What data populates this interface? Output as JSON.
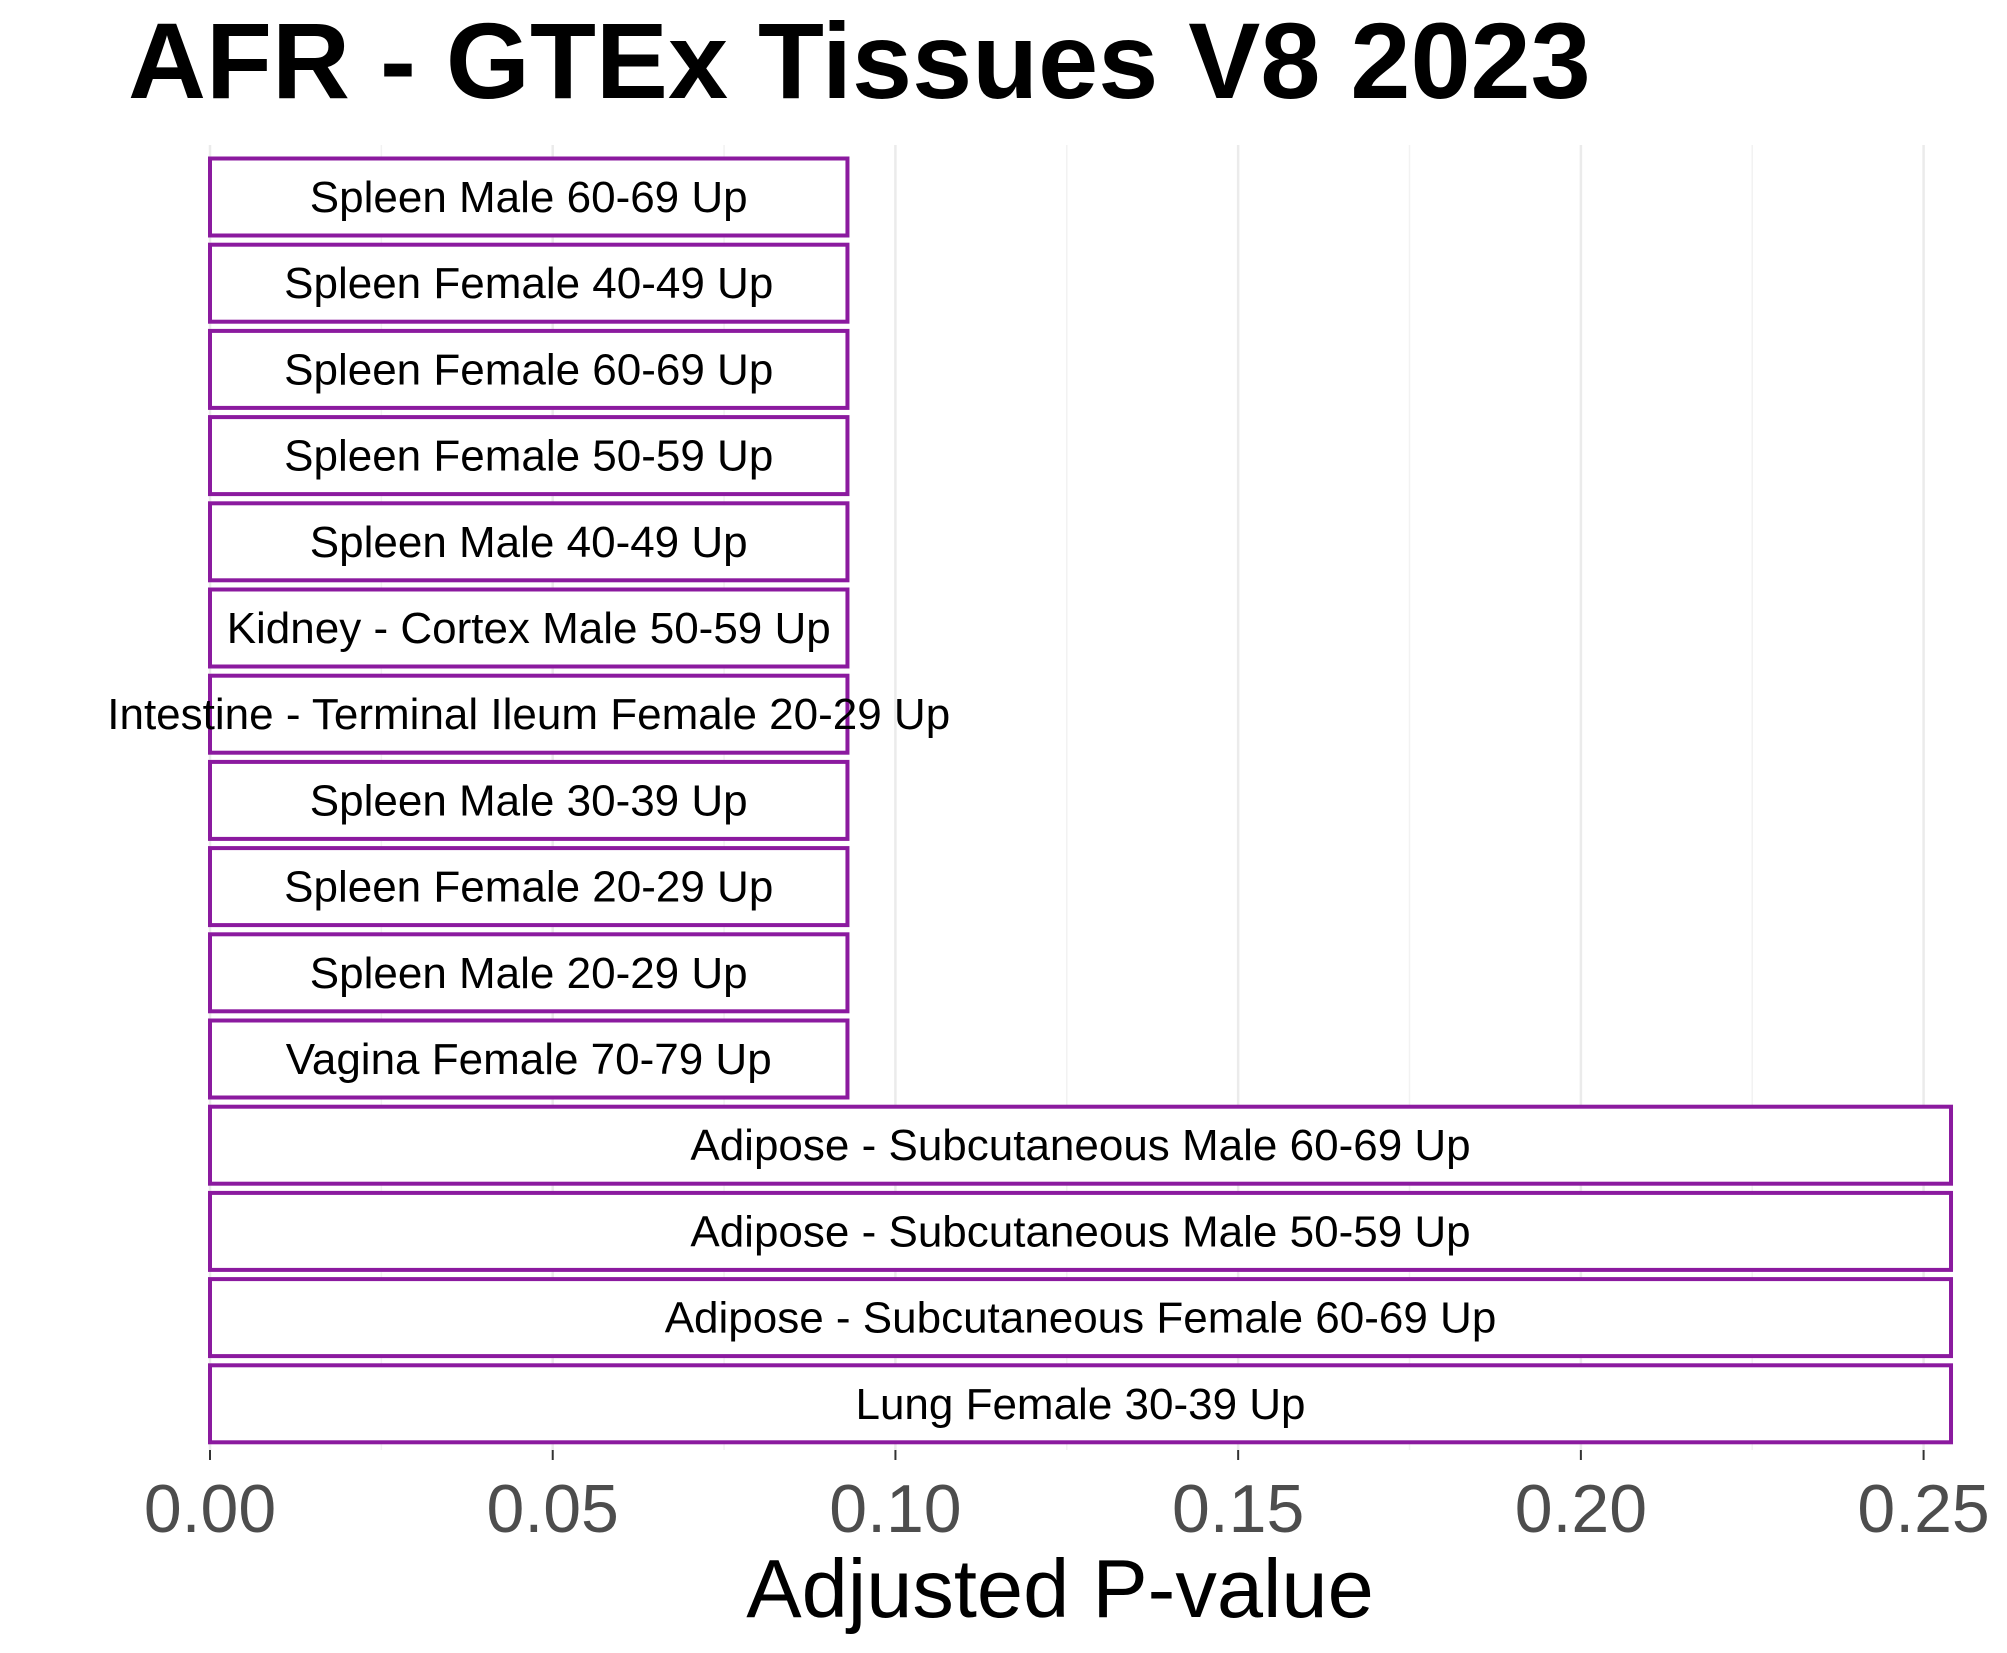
{
  "chart_data": {
    "type": "bar",
    "orientation": "horizontal",
    "title": "AFR  -  GTEx Tissues V8 2023",
    "xlabel": "Adjusted P-value",
    "ylabel": "",
    "xlim": [
      0,
      0.2575
    ],
    "xticks": [
      0.0,
      0.05,
      0.1,
      0.15,
      0.2,
      0.25
    ],
    "xtick_labels": [
      "0.00",
      "0.05",
      "0.10",
      "0.15",
      "0.20",
      "0.25"
    ],
    "grid": "vertical major and minor",
    "bar_fill": "#ffffff",
    "bar_outline": "#8B1A9F",
    "categories": [
      "Spleen Male 60-69 Up",
      "Spleen Female 40-49 Up",
      "Spleen Female 60-69 Up",
      "Spleen Female 50-59 Up",
      "Spleen Male 40-49 Up",
      "Kidney - Cortex Male 50-59 Up",
      "Intestine - Terminal Ileum Female 20-29 Up",
      "Spleen Male 30-39 Up",
      "Spleen Female 20-29 Up",
      "Spleen Male 20-29 Up",
      "Vagina Female 70-79 Up",
      "Adipose - Subcutaneous Male 60-69 Up",
      "Adipose - Subcutaneous Male 50-59 Up",
      "Adipose - Subcutaneous Female 60-69 Up",
      "Lung Female 30-39 Up"
    ],
    "values": [
      0.093,
      0.093,
      0.093,
      0.093,
      0.093,
      0.093,
      0.093,
      0.093,
      0.093,
      0.093,
      0.093,
      0.254,
      0.254,
      0.254,
      0.254
    ]
  }
}
